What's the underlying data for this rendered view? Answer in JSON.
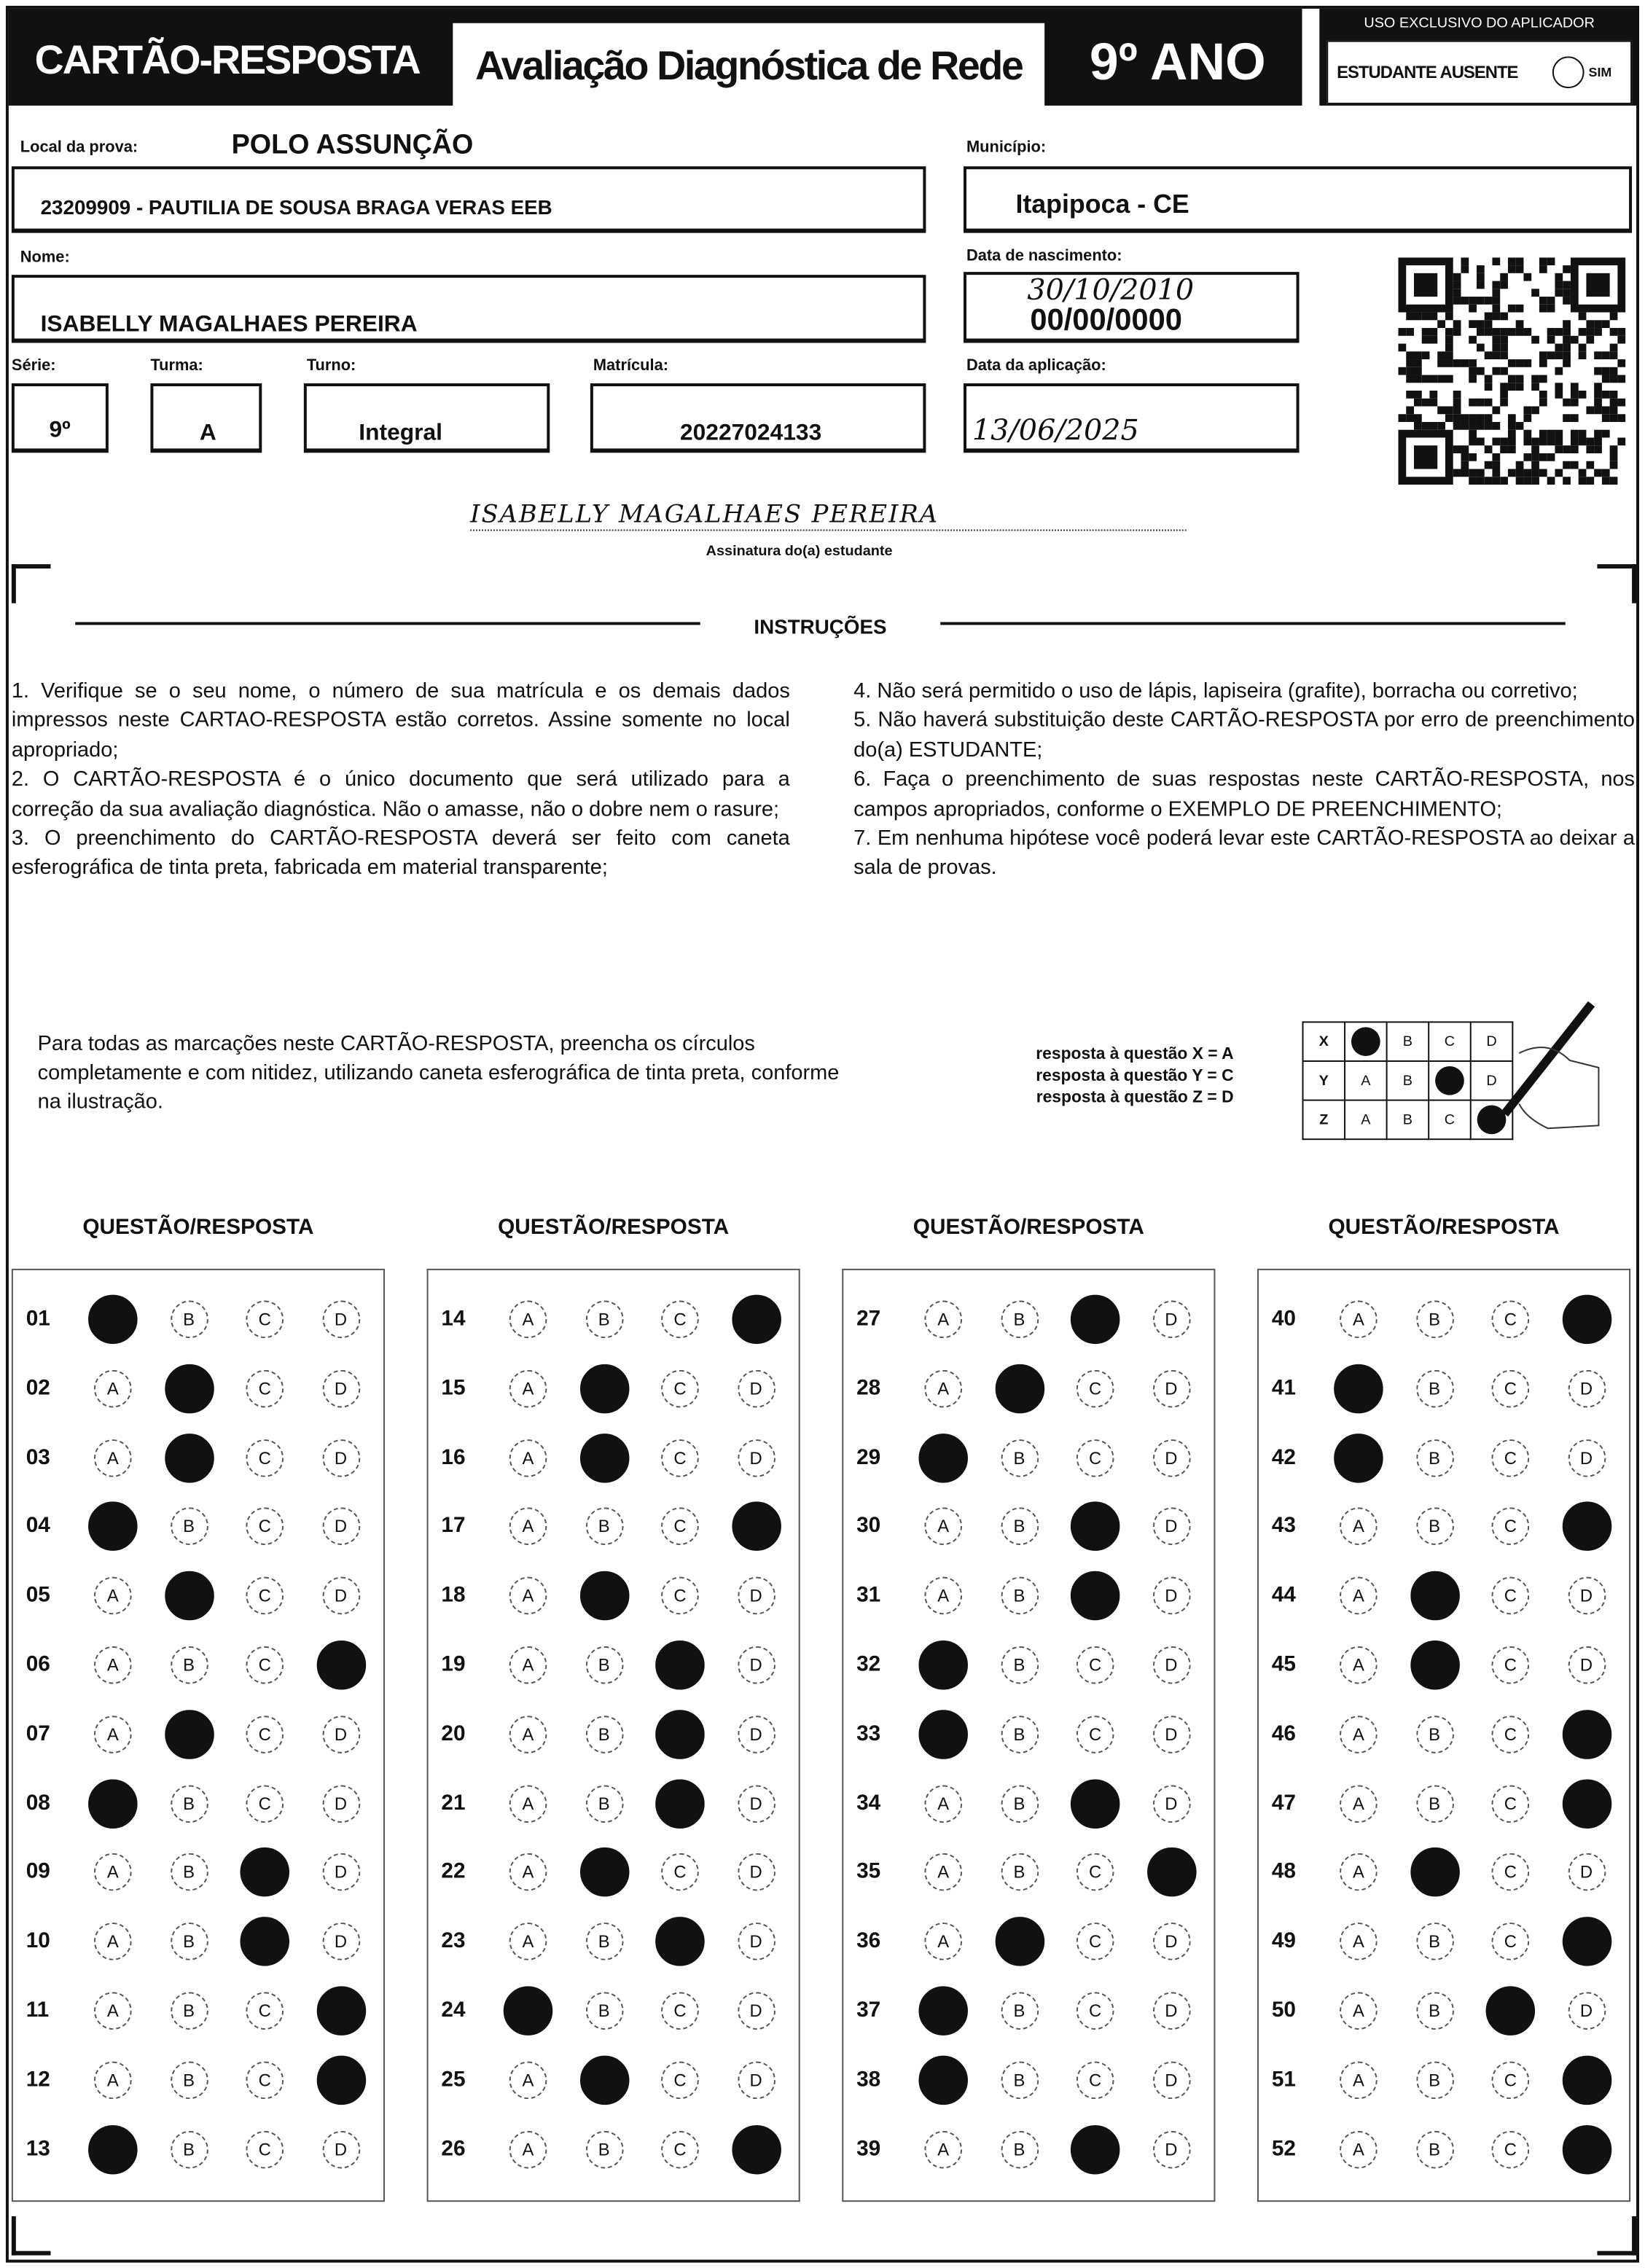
{
  "header": {
    "title": "CARTÃO-RESPOSTA",
    "subtitle": "Avaliação Diagnóstica de Rede",
    "grade": "9º ANO"
  },
  "applicator": {
    "title": "USO EXCLUSIVO DO APLICADOR",
    "absent_label": "ESTUDANTE AUSENTE",
    "yes_label": "SIM"
  },
  "fields": {
    "exam_location_label": "Local da prova:",
    "exam_location": "POLO ASSUNÇÃO",
    "school": "23209909 - PAUTILIA DE SOUSA BRAGA VERAS EEB",
    "city_label": "Município:",
    "city": "Itapipoca - CE",
    "name_label": "Nome:",
    "name": "ISABELLY MAGALHAES PEREIRA",
    "birth_label": "Data de nascimento:",
    "birth_handwritten": "30/10/2010",
    "birth_printed": "00/00/0000",
    "grade_label": "Série:",
    "grade": "9º",
    "class_label": "Turma:",
    "class": "A",
    "shift_label": "Turno:",
    "shift": "Integral",
    "enrollment_label": "Matrícula:",
    "enrollment": "20227024133",
    "date_label": "Data da aplicação:",
    "date": "13/06/2025",
    "signature": "ISABELLY MAGALHAES PEREIRA",
    "signature_label": "Assinatura do(a) estudante"
  },
  "instructions": {
    "title": "INSTRUÇÕES",
    "left": [
      "1. Verifique se o seu nome, o número de sua matrícula e os demais dados impressos neste CARTAO-RESPOSTA estão corretos. Assine somente no local apropriado;",
      "2. O CARTÃO-RESPOSTA é o único documento que será utilizado para a correção da sua avaliação diagnóstica. Não o amasse, não o dobre nem o rasure;",
      "3. O preenchimento do CARTÃO-RESPOSTA deverá ser feito com caneta esferográfica de tinta preta, fabricada em material transparente;"
    ],
    "right": [
      "4. Não será permitido o uso de lápis, lapiseira (grafite), borracha ou corretivo;",
      "5. Não haverá substituição deste CARTÃO-RESPOSTA por erro de preenchimento do(a) ESTUDANTE;",
      "6. Faça o preenchimento de suas respostas neste CARTÃO-RESPOSTA, nos campos apropriados, conforme o EXEMPLO DE PREENCHIMENTO;",
      "7. Em nenhuma hipótese você poderá levar este CARTÃO-RESPOSTA ao deixar a sala de provas."
    ],
    "fill_note": "Para todas as marcações neste CARTÃO-RESPOSTA, preencha os círculos completamente e com nitidez, utilizando caneta esferográfica de tinta preta, conforme na ilustração."
  },
  "example": {
    "legend": [
      "resposta à questão X = A",
      "resposta à questão Y = C",
      "resposta à questão Z = D"
    ],
    "rows": [
      {
        "q": "X",
        "marked": "A"
      },
      {
        "q": "Y",
        "marked": "C"
      },
      {
        "q": "Z",
        "marked": "D"
      }
    ]
  },
  "answers": {
    "column_heading": "QUESTÃO/RESPOSTA",
    "options": [
      "A",
      "B",
      "C",
      "D"
    ],
    "marked": [
      "A",
      "B",
      "B",
      "A",
      "B",
      "D",
      "B",
      "A",
      "C",
      "C",
      "D",
      "D",
      "A",
      "D",
      "B",
      "B",
      "D",
      "B",
      "C",
      "C",
      "C",
      "B",
      "C",
      "A",
      "B",
      "D",
      "C",
      "B",
      "A",
      "C",
      "C",
      "A",
      "A",
      "C",
      "D",
      "B",
      "A",
      "A",
      "C",
      "D",
      "A",
      "A",
      "D",
      "B",
      "B",
      "D",
      "D",
      "B",
      "D",
      "C",
      "D",
      "D"
    ]
  }
}
